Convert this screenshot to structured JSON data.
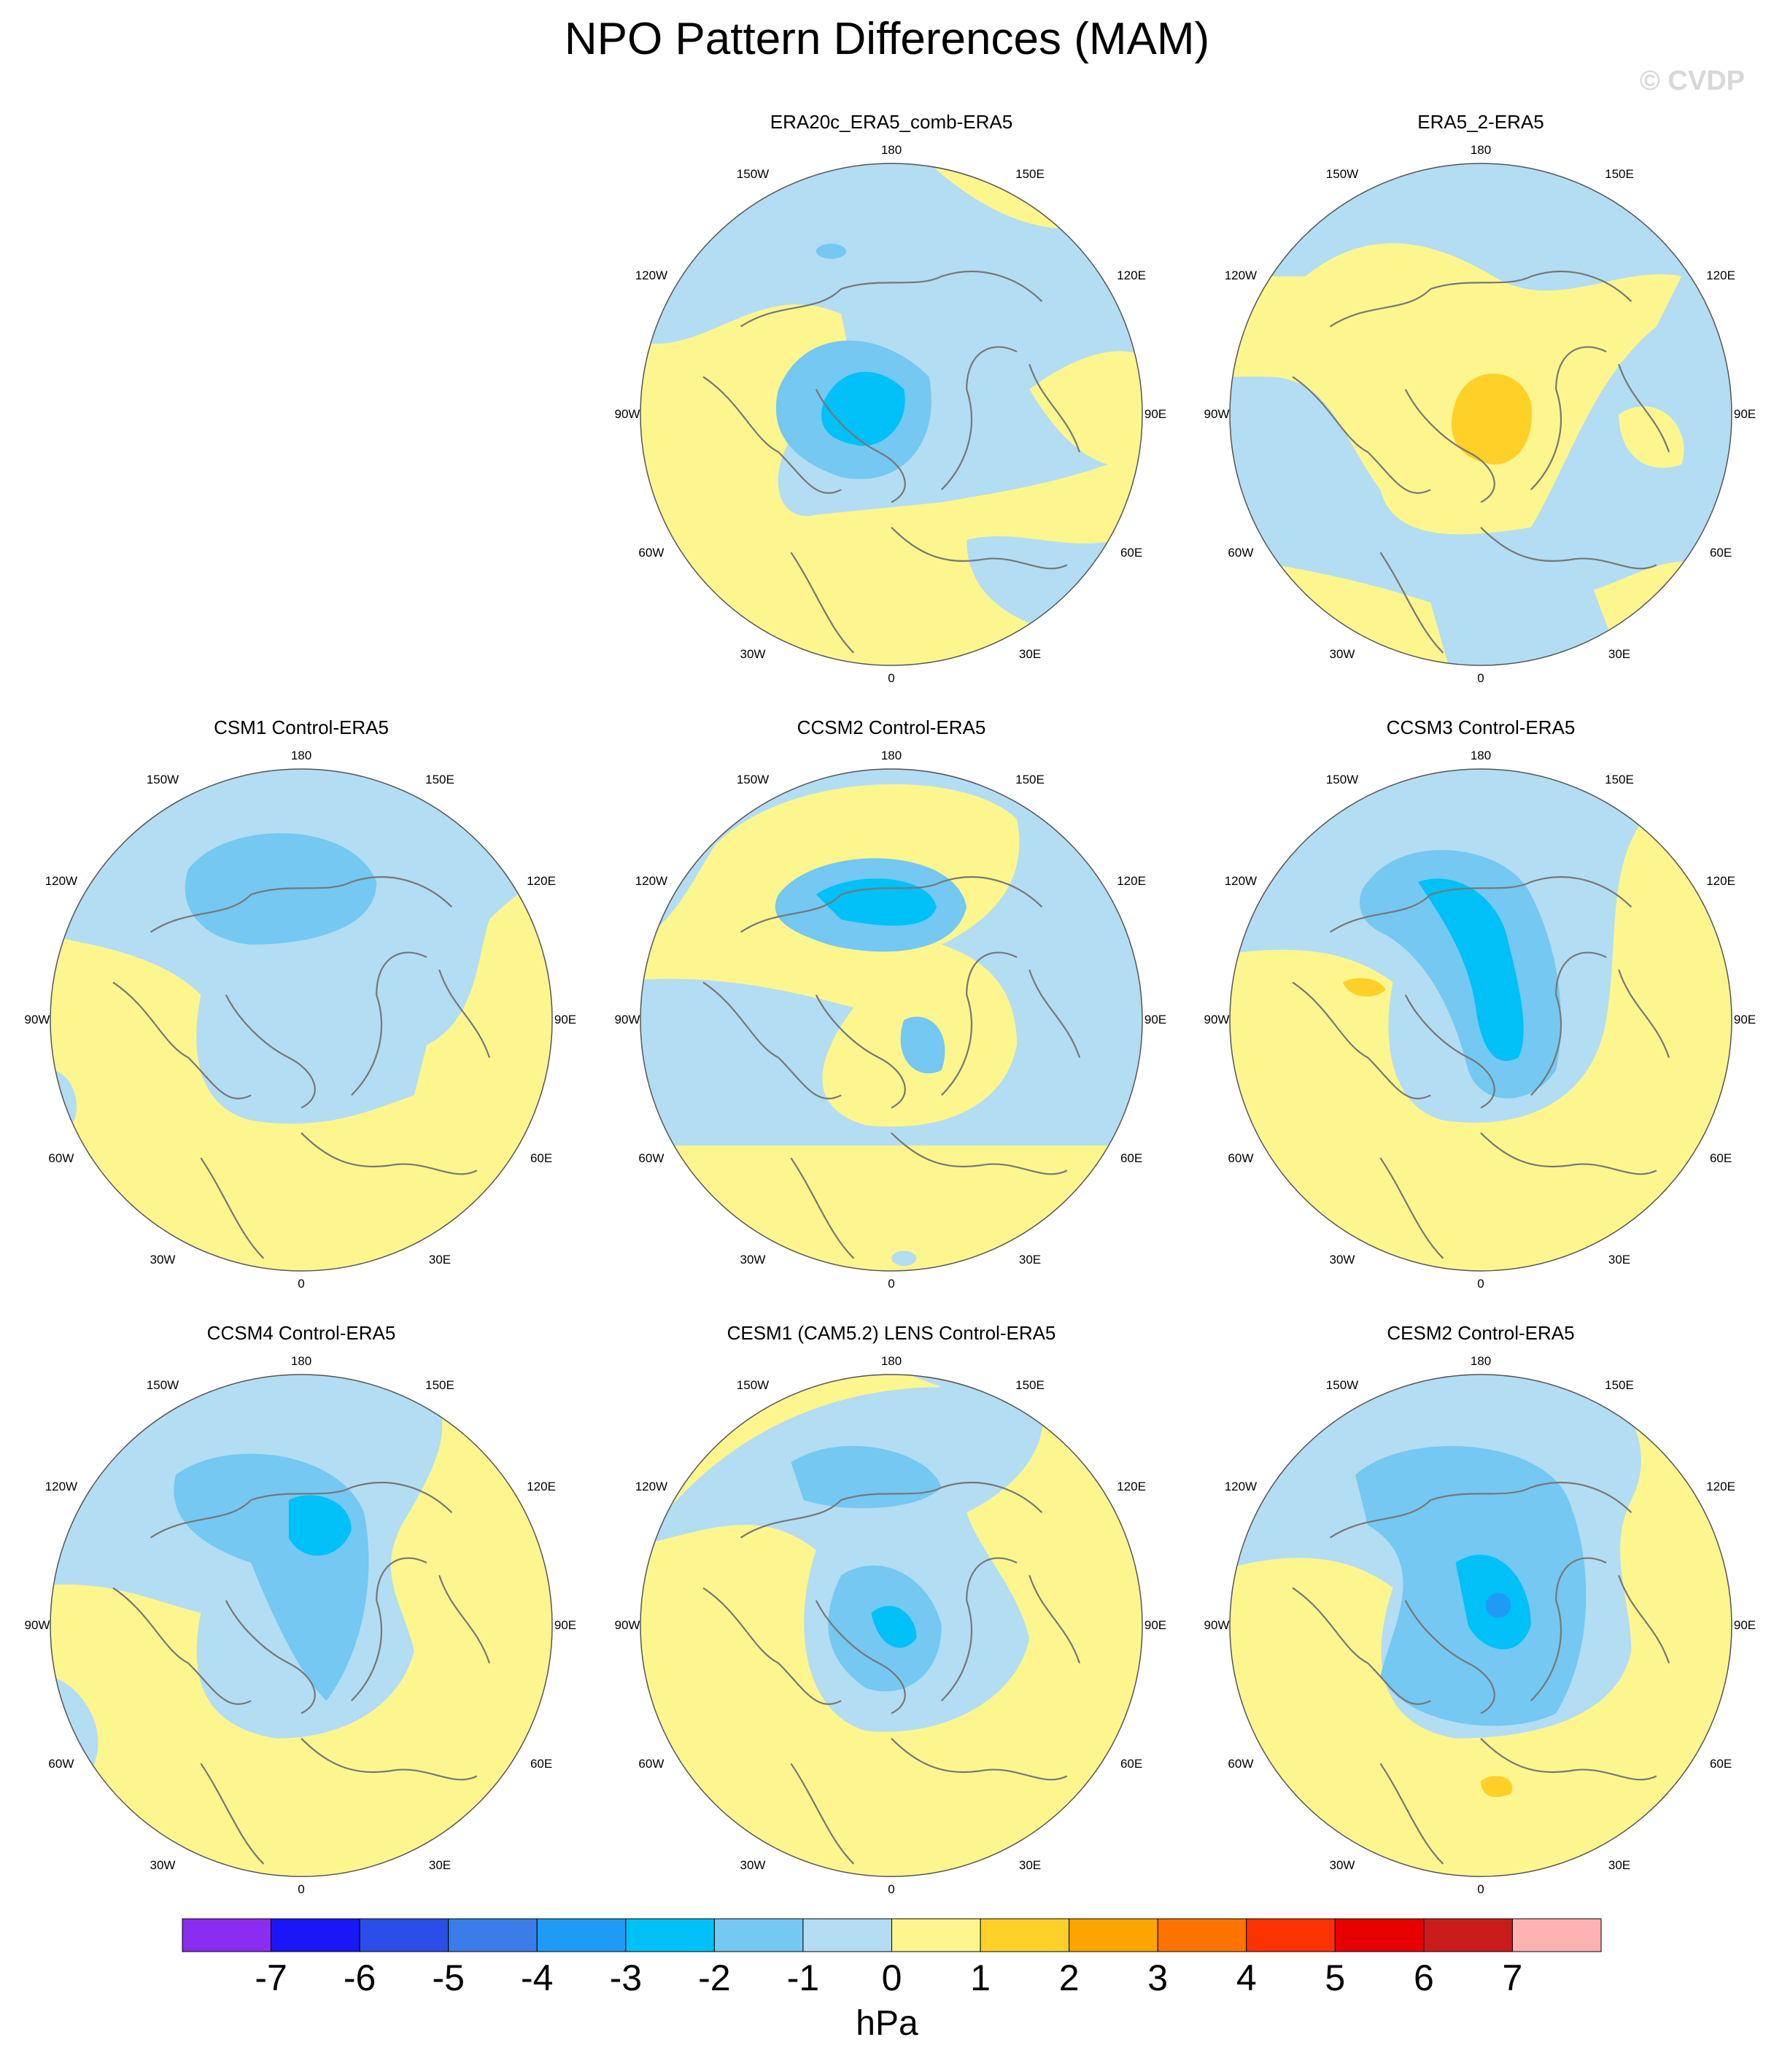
{
  "title": "NPO Pattern Differences (MAM)",
  "watermark": "© CVDP",
  "colors": {
    "ocean_light": "#b3ddf2",
    "yellow_light": "#fdf68f",
    "blue_mid": "#74c8f2",
    "blue_strong": "#00c0f8",
    "blue_deep": "#1f9bf5",
    "yellow_mid": "#fed028",
    "coast": "#777777"
  },
  "lon_labels": [
    "180",
    "150E",
    "120E",
    "90E",
    "60E",
    "30E",
    "0",
    "30W",
    "60W",
    "90W",
    "120W",
    "150W"
  ],
  "panels": [
    {
      "title": "ERA20c_ERA5_comb-ERA5"
    },
    {
      "title": "ERA5_2-ERA5"
    },
    {
      "title": "CSM1 Control-ERA5"
    },
    {
      "title": "CCSM2 Control-ERA5"
    },
    {
      "title": "CCSM3 Control-ERA5"
    },
    {
      "title": "CCSM4 Control-ERA5"
    },
    {
      "title": "CESM1 (CAM5.2) LENS Control-ERA5"
    },
    {
      "title": "CESM2 Control-ERA5"
    }
  ],
  "chart_data": {
    "type": "heatmap",
    "title": "NPO Pattern Differences (MAM)",
    "projection": "polar stereographic (Northern Hemisphere)",
    "colorbar": {
      "unit": "hPa",
      "ticks": [
        -7,
        -6,
        -5,
        -4,
        -3,
        -2,
        -1,
        0,
        1,
        2,
        3,
        4,
        5,
        6,
        7
      ],
      "colors": [
        "#8a2df0",
        "#1a16f5",
        "#2b4ee8",
        "#3a7de8",
        "#1f9bf5",
        "#00c0f8",
        "#74c8f2",
        "#b3ddf2",
        "#fdf68f",
        "#fed028",
        "#fca400",
        "#fc7300",
        "#fc3200",
        "#e60000",
        "#cb1c1c",
        "#ffb2b2"
      ]
    }
  }
}
